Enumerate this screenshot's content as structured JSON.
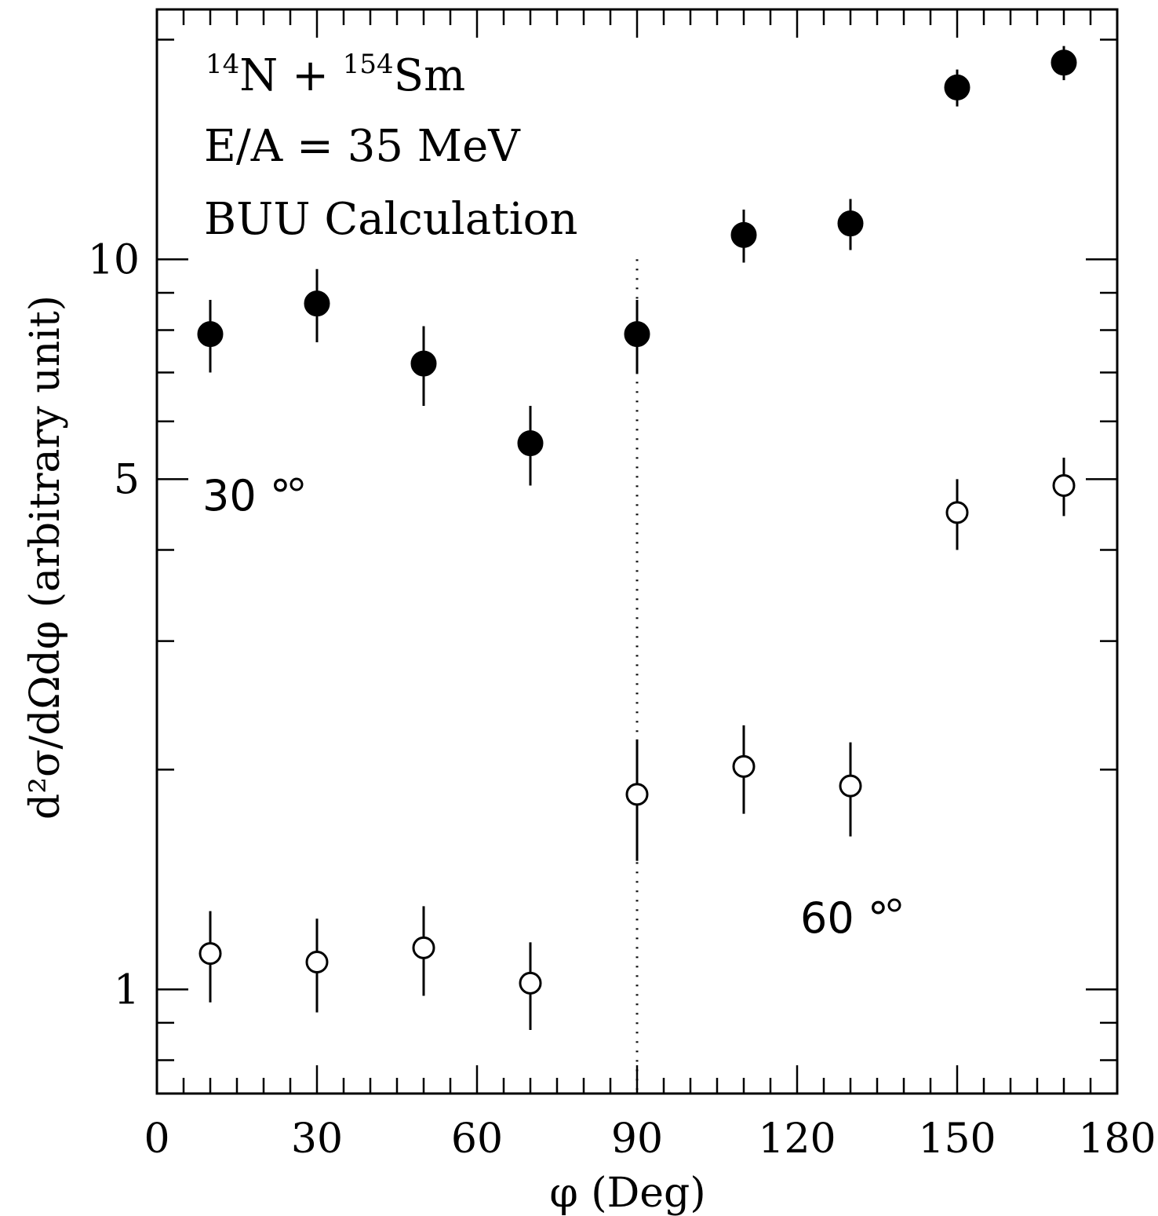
{
  "chart_data": {
    "type": "scatter",
    "title": "",
    "xlabel": "φ (Deg)",
    "ylabel": "d²σ/dΩdφ (arbitrary unit)",
    "xlim": [
      0,
      180
    ],
    "ylim": [
      0.72,
      22
    ],
    "yscale": "log",
    "grid": false,
    "x_ticks": [
      0,
      30,
      60,
      90,
      120,
      150,
      180
    ],
    "y_ticks": [
      1,
      5,
      10
    ],
    "annotations": [
      {
        "parts": [
          "14",
          "N + ",
          "154",
          "Sm"
        ]
      },
      {
        "text": "E/A = 35 MeV"
      },
      {
        "text": "BUU Calculation"
      }
    ],
    "reference_line": {
      "x": 90,
      "style": "dotted"
    },
    "series": [
      {
        "name": "30 °",
        "marker": "filled-circle",
        "x": [
          10,
          30,
          50,
          70,
          90,
          110,
          130,
          150,
          170
        ],
        "y": [
          7.9,
          8.7,
          7.2,
          5.6,
          7.9,
          10.8,
          11.2,
          17.2,
          18.6
        ],
        "yerr": [
          0.9,
          1.0,
          0.9,
          0.7,
          0.9,
          0.9,
          0.9,
          1.0,
          1.0
        ]
      },
      {
        "name": "60 °",
        "marker": "open-circle",
        "x": [
          10,
          30,
          50,
          70,
          90,
          110,
          130,
          150,
          170
        ],
        "y": [
          1.12,
          1.09,
          1.14,
          1.02,
          1.85,
          2.02,
          1.9,
          4.5,
          4.9
        ],
        "yerr": [
          0.16,
          0.16,
          0.16,
          0.14,
          0.35,
          0.28,
          0.28,
          0.5,
          0.45
        ]
      }
    ]
  }
}
